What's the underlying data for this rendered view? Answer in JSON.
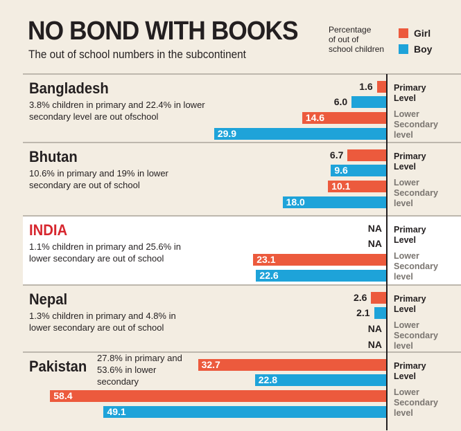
{
  "title": "NO BOND WITH BOOKS",
  "subtitle": "The out of school numbers in the subcontinent",
  "legend": {
    "note_lines": [
      "Percentage",
      "of out of",
      "school children"
    ],
    "items": [
      {
        "label": "Girl",
        "color": "#ec5a3d"
      },
      {
        "label": "Boy",
        "color": "#1ea3d9"
      }
    ]
  },
  "level_labels": {
    "primary": [
      "Primary",
      "Level"
    ],
    "lower": [
      "Lower",
      "Secondary",
      "level"
    ]
  },
  "chart_data": {
    "type": "bar",
    "orientation": "horizontal",
    "unit": "Percentage of out of school children",
    "series": [
      {
        "name": "Girl",
        "color": "#ec5a3d"
      },
      {
        "name": "Boy",
        "color": "#1ea3d9"
      }
    ],
    "countries": [
      {
        "name": "Bangladesh",
        "highlight": false,
        "note_lines": [
          "3.8% children in primary and 22.4% in lower",
          "secondary level are out ofschool"
        ],
        "primary": {
          "girl": 1.6,
          "boy": 6.0
        },
        "lower_secondary": {
          "girl": 14.6,
          "boy": 29.9
        }
      },
      {
        "name": "Bhutan",
        "highlight": false,
        "note_lines": [
          "10.6% in primary and 19% in lower",
          "secondary are out of school"
        ],
        "primary": {
          "girl": 6.7,
          "boy": 9.6
        },
        "lower_secondary": {
          "girl": 10.1,
          "boy": 18.0
        }
      },
      {
        "name": "INDIA",
        "highlight": true,
        "note_lines": [
          "1.1% children in primary and 25.6% in",
          "lower secondary are out of school"
        ],
        "primary": {
          "girl": "NA",
          "boy": "NA"
        },
        "lower_secondary": {
          "girl": 23.1,
          "boy": 22.6
        }
      },
      {
        "name": "Nepal",
        "highlight": false,
        "note_lines": [
          "1.3% children in primary and 4.8% in",
          "lower secondary are out of school"
        ],
        "primary": {
          "girl": 2.6,
          "boy": 2.1
        },
        "lower_secondary": {
          "girl": "NA",
          "boy": "NA"
        }
      },
      {
        "name": "Pakistan",
        "highlight": false,
        "note_lines": [
          "27.8% in primary and",
          "53.6% in lower",
          "secondary"
        ],
        "primary": {
          "girl": 32.7,
          "boy": 22.8
        },
        "lower_secondary": {
          "girl": 58.4,
          "boy": 49.1
        }
      }
    ]
  }
}
